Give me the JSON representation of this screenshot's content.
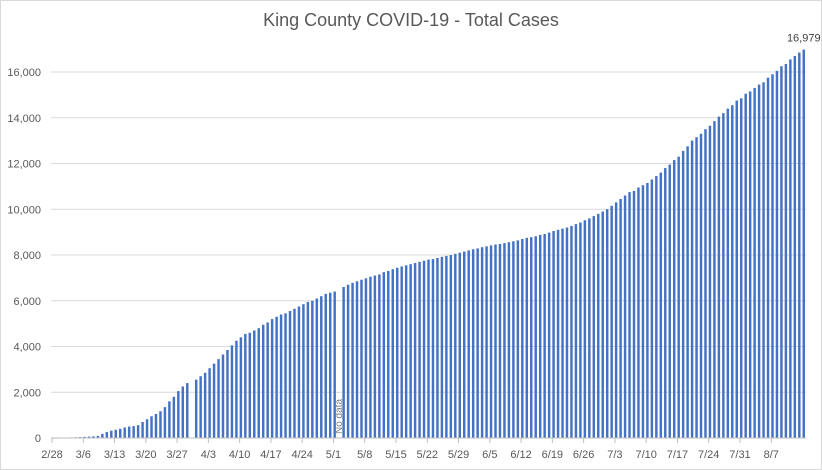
{
  "chart_data": {
    "type": "bar",
    "title": "King County COVID-19 - Total Cases",
    "xlabel": "",
    "ylabel": "",
    "ylim": [
      0,
      16000
    ],
    "yticks": [
      0,
      2000,
      4000,
      6000,
      8000,
      10000,
      12000,
      14000,
      16000
    ],
    "ytick_labels": [
      "0",
      "2,000",
      "4,000",
      "6,000",
      "8,000",
      "10,000",
      "12,000",
      "14,000",
      "16,000"
    ],
    "xtick_labels": [
      "2/28",
      "3/6",
      "3/13",
      "3/20",
      "3/27",
      "4/3",
      "4/10",
      "4/17",
      "4/24",
      "5/1",
      "5/8",
      "5/15",
      "5/22",
      "5/29",
      "6/5",
      "6/12",
      "6/19",
      "6/26",
      "7/3",
      "7/10",
      "7/17",
      "7/24",
      "7/31",
      "8/7"
    ],
    "start_date": "2/28",
    "grid": true,
    "legend": "none",
    "annotations": [
      {
        "text": "No data",
        "date": "5/2"
      },
      {
        "text": "16,979",
        "date": "8/12"
      }
    ],
    "values": [
      5,
      10,
      15,
      20,
      25,
      30,
      40,
      50,
      60,
      75,
      90,
      180,
      260,
      320,
      360,
      400,
      460,
      500,
      520,
      560,
      700,
      820,
      950,
      1050,
      1170,
      1350,
      1600,
      1800,
      2050,
      2250,
      2400,
      null,
      2550,
      2700,
      2850,
      3050,
      3250,
      3450,
      3650,
      3850,
      4050,
      4250,
      4400,
      4550,
      4600,
      4700,
      4800,
      4950,
      5050,
      5200,
      5300,
      5400,
      5450,
      5550,
      5650,
      5750,
      5850,
      5950,
      6000,
      6100,
      6200,
      6300,
      6350,
      6400,
      null,
      6600,
      6700,
      6780,
      6850,
      6920,
      6980,
      7050,
      7100,
      7150,
      7250,
      7300,
      7380,
      7440,
      7500,
      7550,
      7600,
      7650,
      7700,
      7750,
      7800,
      7820,
      7870,
      7920,
      7960,
      8000,
      8050,
      8100,
      8150,
      8200,
      8250,
      8290,
      8340,
      8380,
      8420,
      8460,
      8480,
      8520,
      8560,
      8600,
      8640,
      8700,
      8750,
      8780,
      8820,
      8880,
      8920,
      8980,
      9050,
      9100,
      9150,
      9200,
      9270,
      9350,
      9420,
      9520,
      9600,
      9700,
      9800,
      9900,
      10000,
      10150,
      10300,
      10450,
      10600,
      10750,
      10800,
      10950,
      11050,
      11150,
      11300,
      11450,
      11600,
      11800,
      11950,
      12150,
      12300,
      12550,
      12750,
      13000,
      13150,
      13300,
      13500,
      13650,
      13850,
      14050,
      14200,
      14400,
      14550,
      14750,
      14850,
      15050,
      15150,
      15300,
      15450,
      15550,
      15750,
      15900,
      16050,
      16250,
      16350,
      16550,
      16700,
      16850,
      16979
    ]
  }
}
